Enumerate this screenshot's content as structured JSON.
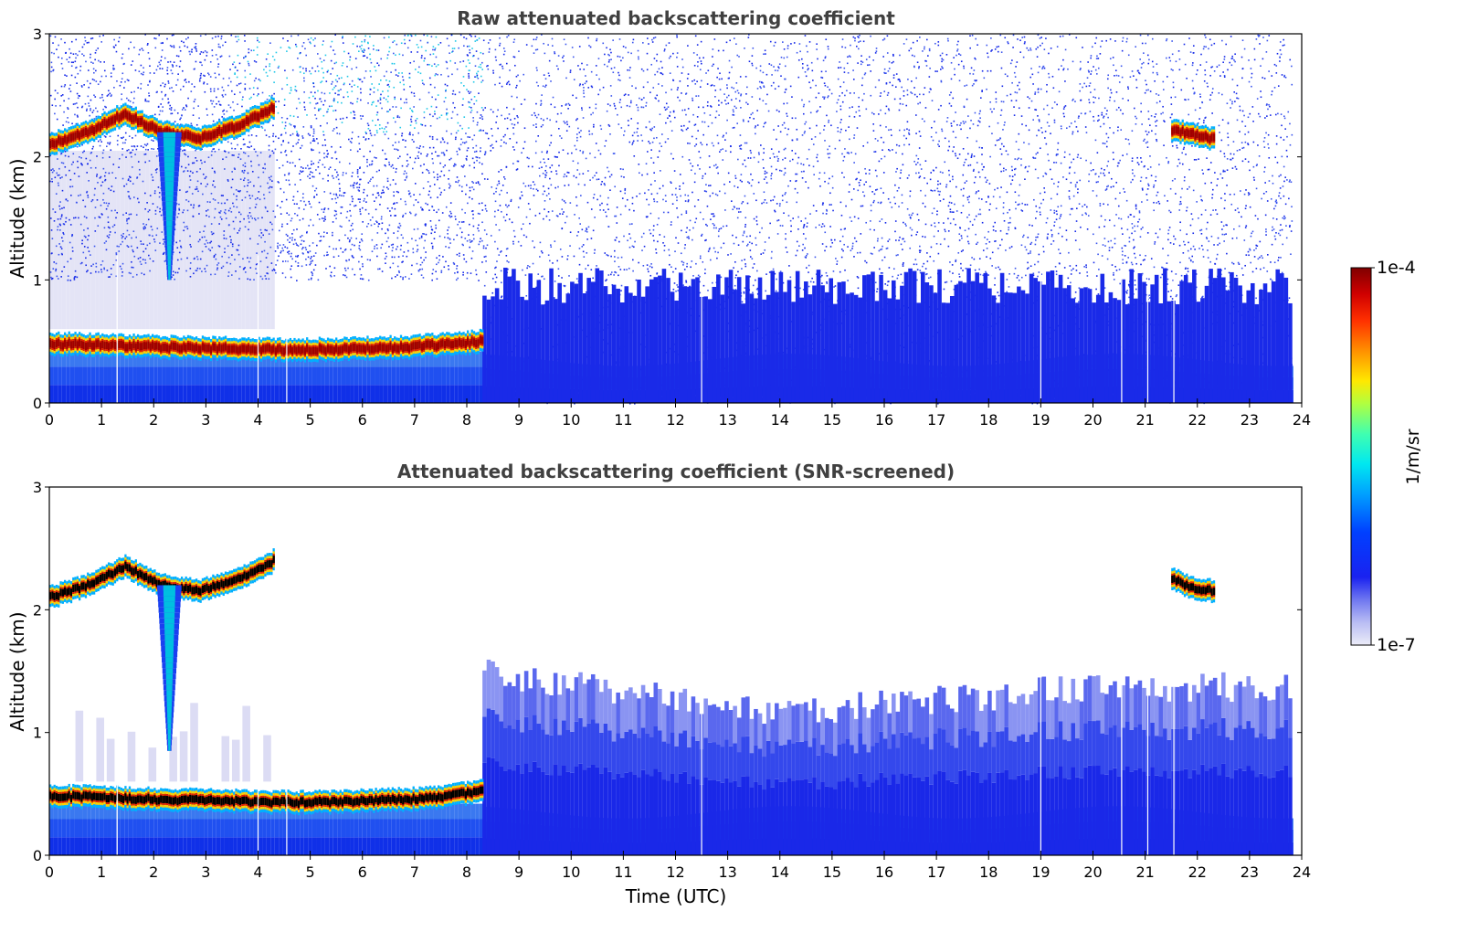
{
  "chart_data": [
    {
      "type": "heatmap",
      "title": "Raw attenuated backscattering coefficient",
      "xlabel": "",
      "ylabel": "Altitude (km)",
      "xlim": [
        0,
        24
      ],
      "ylim": [
        0,
        3
      ],
      "xticks": [
        "0",
        "1",
        "2",
        "3",
        "4",
        "5",
        "6",
        "7",
        "8",
        "9",
        "10",
        "11",
        "12",
        "13",
        "14",
        "15",
        "16",
        "17",
        "18",
        "19",
        "20",
        "21",
        "22",
        "23",
        "24"
      ],
      "yticks": [
        "0",
        "1",
        "2",
        "3"
      ],
      "data_end_time": 23.8,
      "missing_time_gaps": [
        1.3,
        4.0,
        4.55,
        12.5,
        19.0,
        20.55,
        21.05,
        21.55
      ],
      "features": [
        {
          "kind": "cloud_layer",
          "t_start": 0.0,
          "t_end": 4.3,
          "alt_km": [
            2.1,
            2.2,
            2.35,
            2.2,
            2.15,
            2.25,
            2.4
          ],
          "value_level": "high"
        },
        {
          "kind": "cloud_layer",
          "t_start": 0.0,
          "t_end": 8.3,
          "alt_km": [
            0.48,
            0.47,
            0.45,
            0.44,
            0.43,
            0.44,
            0.46,
            0.5
          ],
          "value_level": "high"
        },
        {
          "kind": "cloud_layer",
          "t_start": 21.5,
          "t_end": 22.3,
          "alt_km": [
            2.22,
            2.18,
            2.15
          ],
          "value_level": "high"
        },
        {
          "kind": "precipitation_streak",
          "t_center": 2.3,
          "alt_top_km": 2.2,
          "alt_bottom_km": 1.0
        },
        {
          "kind": "noise_region",
          "t_start": 0.0,
          "t_end": 8.3,
          "alt_min_km": 1.2,
          "alt_max_km": 3.0
        },
        {
          "kind": "noise_region",
          "t_start": 8.3,
          "t_end": 23.8,
          "alt_min_km": 0.0,
          "alt_max_km": 3.0
        }
      ]
    },
    {
      "type": "heatmap",
      "title": "Attenuated backscattering coefficient (SNR-screened)",
      "xlabel": "Time (UTC)",
      "ylabel": "Altitude (km)",
      "xlim": [
        0,
        24
      ],
      "ylim": [
        0,
        3
      ],
      "xticks": [
        "0",
        "1",
        "2",
        "3",
        "4",
        "5",
        "6",
        "7",
        "8",
        "9",
        "10",
        "11",
        "12",
        "13",
        "14",
        "15",
        "16",
        "17",
        "18",
        "19",
        "20",
        "21",
        "22",
        "23",
        "24"
      ],
      "yticks": [
        "0",
        "1",
        "2",
        "3"
      ],
      "data_end_time": 23.8,
      "missing_time_gaps": [
        1.3,
        4.0,
        4.55,
        12.5,
        19.0,
        20.55,
        21.05,
        21.55
      ],
      "features": [
        {
          "kind": "cloud_layer",
          "t_start": 0.0,
          "t_end": 4.3,
          "alt_km": [
            2.1,
            2.2,
            2.35,
            2.2,
            2.15,
            2.25,
            2.4
          ],
          "value_level": "saturated"
        },
        {
          "kind": "cloud_layer",
          "t_start": 0.0,
          "t_end": 8.3,
          "alt_km": [
            0.48,
            0.47,
            0.45,
            0.44,
            0.43,
            0.44,
            0.46,
            0.52
          ],
          "value_level": "saturated"
        },
        {
          "kind": "cloud_layer",
          "t_start": 21.5,
          "t_end": 22.3,
          "alt_km": [
            2.25,
            2.18,
            2.15
          ],
          "value_level": "saturated"
        },
        {
          "kind": "precipitation_streak",
          "t_center": 2.3,
          "alt_top_km": 2.2,
          "alt_bottom_km": 0.85
        },
        {
          "kind": "boundary_layer",
          "t_start": 8.3,
          "t_end": 23.8,
          "alt_top_km": [
            1.6,
            1.45,
            1.3,
            1.35,
            1.45,
            1.5,
            1.5
          ]
        }
      ]
    }
  ],
  "colorbar": {
    "label": "1/m/sr",
    "max_label": "1e-4",
    "min_label": "1e-7",
    "scale": "log",
    "range": [
      1e-07,
      0.0001
    ],
    "colormap": "jet"
  }
}
